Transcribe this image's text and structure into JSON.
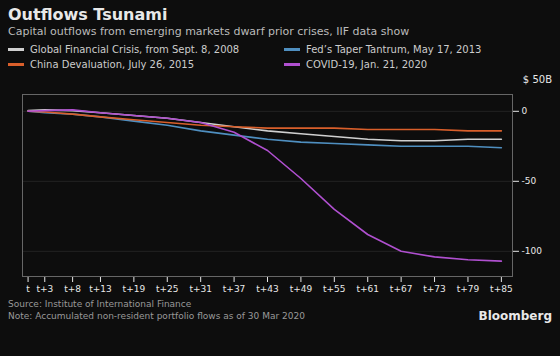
{
  "chart_data": {
    "type": "line",
    "title": "Outflows Tsunami",
    "subtitle": "Capital outflows from emerging markets dwarf prior crises, IIF data show",
    "source": "Source: Institute of International Finance",
    "note": "Note: Accumulated non-resident portfolio flows as of 30 Mar 2020",
    "annotations": [
      "Bloomberg"
    ],
    "ylabel": "$ 50B",
    "x": [
      0,
      3,
      8,
      13,
      19,
      25,
      31,
      37,
      43,
      49,
      55,
      61,
      67,
      73,
      79,
      85
    ],
    "xlim": [
      -1,
      87
    ],
    "xticks": [
      {
        "value": 0,
        "label": "t"
      },
      {
        "value": 3,
        "label": "t+3"
      },
      {
        "value": 8,
        "label": "t+8"
      },
      {
        "value": 13,
        "label": "t+13"
      },
      {
        "value": 19,
        "label": "t+19"
      },
      {
        "value": 25,
        "label": "t+25"
      },
      {
        "value": 31,
        "label": "t+31"
      },
      {
        "value": 37,
        "label": "t+37"
      },
      {
        "value": 43,
        "label": "t+43"
      },
      {
        "value": 49,
        "label": "t+49"
      },
      {
        "value": 55,
        "label": "t+55"
      },
      {
        "value": 61,
        "label": "t+61"
      },
      {
        "value": 67,
        "label": "t+67"
      },
      {
        "value": 73,
        "label": "t+73"
      },
      {
        "value": 79,
        "label": "t+79"
      },
      {
        "value": 85,
        "label": "t+85"
      }
    ],
    "ylim": [
      -118,
      12
    ],
    "yticks": [
      0,
      -50,
      -100
    ],
    "grid": true,
    "legend": "top",
    "series": [
      {
        "name": "Global Financial Crisis, from Sept. 8, 2008",
        "color": "#d0d0d0",
        "values": [
          0.5,
          1.0,
          0.5,
          -1,
          -3,
          -5,
          -8,
          -11,
          -14,
          -16,
          -18,
          -20,
          -21,
          -21,
          -20,
          -20
        ]
      },
      {
        "name": "Fed’s Taper Tantrum, May 17, 2013",
        "color": "#4f8fc0",
        "values": [
          0,
          -1,
          -2,
          -4,
          -7,
          -10,
          -14,
          -17,
          -20,
          -22,
          -23,
          -24,
          -25,
          -25,
          -25,
          -26
        ]
      },
      {
        "name": "China Devaluation, July 26, 2015",
        "color": "#d95f2b",
        "values": [
          0,
          -0.5,
          -2,
          -4,
          -6,
          -8,
          -10,
          -11,
          -12,
          -12,
          -12,
          -13,
          -13,
          -13,
          -14,
          -14
        ]
      },
      {
        "name": "COVID-19, Jan. 21, 2020",
        "color": "#b050d0",
        "values": [
          0,
          0.5,
          1,
          -1,
          -3,
          -5,
          -8,
          -15,
          -28,
          -48,
          -70,
          -88,
          -100,
          -104,
          -106,
          -107
        ]
      }
    ]
  }
}
